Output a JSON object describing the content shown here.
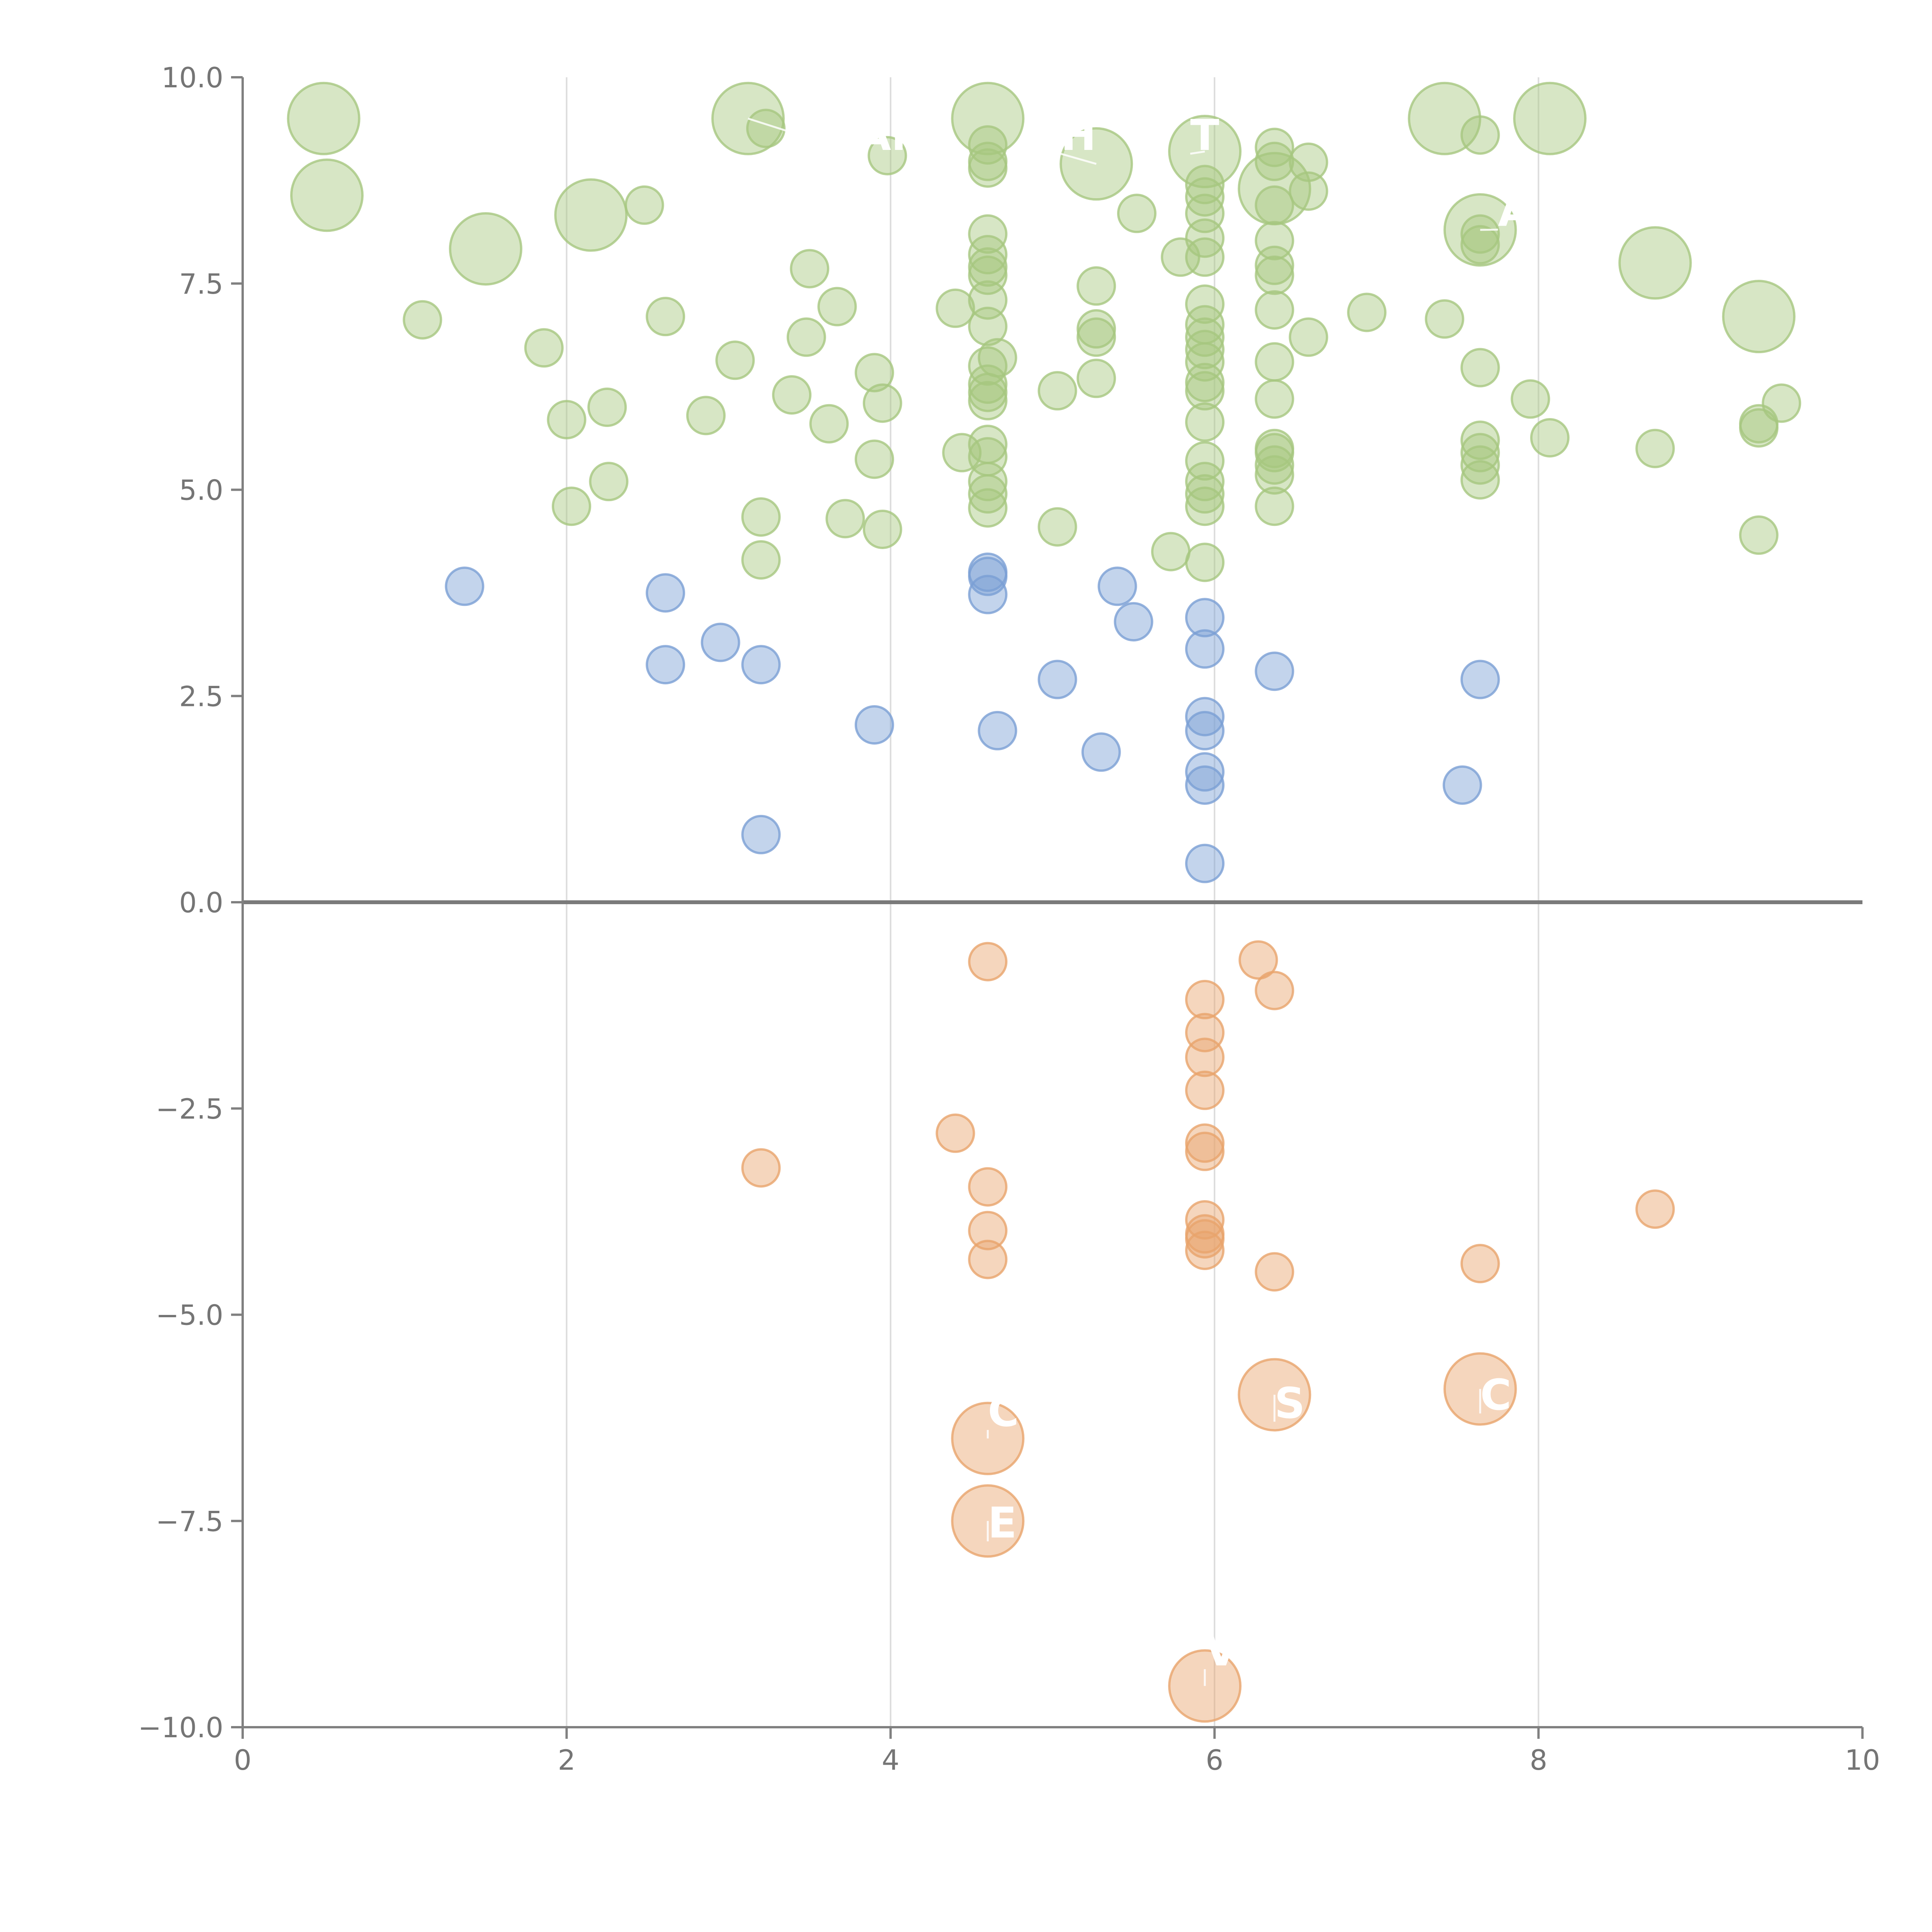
{
  "chart_data": {
    "type": "scatter",
    "title": "",
    "xlabel": "",
    "ylabel": "",
    "xlim": [
      0,
      10
    ],
    "ylim": [
      -10,
      10
    ],
    "x_ticks": [
      "0",
      "2",
      "4",
      "6",
      "8",
      "10"
    ],
    "x_tick_values": [
      0,
      2,
      4,
      6,
      8,
      10
    ],
    "y_ticks": [
      "10.0",
      "7.5",
      "5.0",
      "2.5",
      "0.0",
      "−2.5",
      "−5.0",
      "−7.5",
      "−10.0"
    ],
    "y_tick_values": [
      10,
      7.5,
      5,
      2.5,
      0,
      -2.5,
      -5,
      -7.5,
      -10
    ],
    "vertical_grid": [
      2,
      4,
      6,
      8
    ],
    "zero_line": true,
    "legend": "none",
    "colors": {
      "positive_high": "#a6c77f",
      "positive_low": "#7b9fd4",
      "negative": "#e8a46c"
    },
    "series": [
      {
        "color_key": "positive_high",
        "points": [
          [
            0.5,
            9.5,
            2
          ],
          [
            0.52,
            8.57,
            2
          ],
          [
            1.5,
            7.92,
            2
          ],
          [
            2.15,
            8.33,
            2
          ],
          [
            3.12,
            9.5,
            2
          ],
          [
            4.6,
            9.5,
            2
          ],
          [
            5.27,
            8.95,
            2
          ],
          [
            5.94,
            9.1,
            2
          ],
          [
            6.37,
            8.65,
            2
          ],
          [
            7.42,
            9.5,
            2
          ],
          [
            8.07,
            9.5,
            2
          ],
          [
            7.64,
            8.15,
            2
          ],
          [
            8.72,
            7.75,
            2
          ],
          [
            9.36,
            7.1,
            2
          ],
          [
            1.11,
            7.06,
            1
          ],
          [
            1.86,
            6.72,
            1
          ],
          [
            2.0,
            5.85,
            1
          ],
          [
            2.03,
            4.8,
            1
          ],
          [
            2.25,
            6.0,
            1
          ],
          [
            2.26,
            5.1,
            1
          ],
          [
            2.48,
            8.45,
            1
          ],
          [
            2.61,
            7.1,
            1
          ],
          [
            2.86,
            5.9,
            1
          ],
          [
            3.04,
            6.57,
            1
          ],
          [
            3.2,
            4.67,
            1
          ],
          [
            3.2,
            4.15,
            1
          ],
          [
            3.23,
            9.38,
            1
          ],
          [
            3.39,
            6.15,
            1
          ],
          [
            3.48,
            6.85,
            1
          ],
          [
            3.5,
            7.68,
            1
          ],
          [
            3.62,
            5.8,
            1
          ],
          [
            3.67,
            7.22,
            1
          ],
          [
            3.72,
            4.65,
            1
          ],
          [
            3.9,
            6.42,
            1
          ],
          [
            3.9,
            5.37,
            1
          ],
          [
            3.95,
            6.05,
            1
          ],
          [
            3.95,
            4.52,
            1
          ],
          [
            3.98,
            9.05,
            1
          ],
          [
            4.4,
            7.2,
            1
          ],
          [
            4.44,
            5.45,
            1
          ],
          [
            4.6,
            9.18,
            1
          ],
          [
            4.6,
            8.98,
            1
          ],
          [
            4.6,
            8.9,
            1
          ],
          [
            4.6,
            8.1,
            1
          ],
          [
            4.6,
            7.85,
            1
          ],
          [
            4.6,
            7.7,
            1
          ],
          [
            4.6,
            7.6,
            1
          ],
          [
            4.6,
            7.3,
            1
          ],
          [
            4.6,
            6.98,
            1
          ],
          [
            4.6,
            6.5,
            1
          ],
          [
            4.6,
            6.28,
            1
          ],
          [
            4.6,
            6.18,
            1
          ],
          [
            4.6,
            6.08,
            1
          ],
          [
            4.6,
            5.55,
            1
          ],
          [
            4.6,
            5.4,
            1
          ],
          [
            4.6,
            5.1,
            1
          ],
          [
            4.6,
            4.95,
            1
          ],
          [
            4.6,
            4.78,
            1
          ],
          [
            4.66,
            6.6,
            1
          ],
          [
            5.03,
            6.2,
            1
          ],
          [
            5.03,
            4.55,
            1
          ],
          [
            5.27,
            7.47,
            1
          ],
          [
            5.27,
            6.95,
            1
          ],
          [
            5.27,
            6.85,
            1
          ],
          [
            5.27,
            6.35,
            1
          ],
          [
            5.52,
            8.35,
            1
          ],
          [
            5.73,
            4.25,
            1
          ],
          [
            5.79,
            7.82,
            1
          ],
          [
            5.94,
            8.7,
            1
          ],
          [
            5.94,
            8.55,
            1
          ],
          [
            5.94,
            8.35,
            1
          ],
          [
            5.94,
            8.05,
            1
          ],
          [
            5.94,
            7.82,
            1
          ],
          [
            5.94,
            7.25,
            1
          ],
          [
            5.94,
            7.0,
            1
          ],
          [
            5.94,
            6.85,
            1
          ],
          [
            5.94,
            6.7,
            1
          ],
          [
            5.94,
            6.55,
            1
          ],
          [
            5.94,
            6.3,
            1
          ],
          [
            5.94,
            6.2,
            1
          ],
          [
            5.94,
            5.82,
            1
          ],
          [
            5.94,
            5.35,
            1
          ],
          [
            5.94,
            5.1,
            1
          ],
          [
            5.94,
            4.95,
            1
          ],
          [
            5.94,
            4.8,
            1
          ],
          [
            5.94,
            4.12,
            1
          ],
          [
            6.37,
            9.15,
            1
          ],
          [
            6.37,
            8.98,
            1
          ],
          [
            6.37,
            8.45,
            1
          ],
          [
            6.37,
            8.02,
            1
          ],
          [
            6.37,
            7.72,
            1
          ],
          [
            6.37,
            7.6,
            1
          ],
          [
            6.37,
            7.18,
            1
          ],
          [
            6.37,
            6.55,
            1
          ],
          [
            6.37,
            6.1,
            1
          ],
          [
            6.37,
            5.5,
            1
          ],
          [
            6.37,
            5.45,
            1
          ],
          [
            6.37,
            5.3,
            1
          ],
          [
            6.37,
            5.18,
            1
          ],
          [
            6.37,
            4.8,
            1
          ],
          [
            6.58,
            8.97,
            1
          ],
          [
            6.58,
            8.62,
            1
          ],
          [
            6.58,
            6.85,
            1
          ],
          [
            6.94,
            7.15,
            1
          ],
          [
            7.42,
            7.07,
            1
          ],
          [
            7.64,
            9.3,
            1
          ],
          [
            7.64,
            8.1,
            1
          ],
          [
            7.64,
            7.97,
            1
          ],
          [
            7.64,
            6.48,
            1
          ],
          [
            7.64,
            5.6,
            1
          ],
          [
            7.64,
            5.45,
            1
          ],
          [
            7.64,
            5.3,
            1
          ],
          [
            7.64,
            5.12,
            1
          ],
          [
            7.95,
            6.1,
            1
          ],
          [
            8.07,
            5.63,
            1
          ],
          [
            8.72,
            5.5,
            1
          ],
          [
            9.36,
            5.8,
            1
          ],
          [
            9.36,
            5.75,
            1
          ],
          [
            9.36,
            4.45,
            1
          ],
          [
            9.5,
            6.05,
            1
          ]
        ]
      },
      {
        "color_key": "positive_low",
        "points": [
          [
            1.37,
            3.83,
            1
          ],
          [
            2.61,
            3.75,
            1
          ],
          [
            2.61,
            2.88,
            1
          ],
          [
            2.95,
            3.15,
            1
          ],
          [
            3.2,
            2.88,
            1
          ],
          [
            3.2,
            0.82,
            1
          ],
          [
            3.9,
            2.15,
            1
          ],
          [
            4.6,
            4.0,
            1
          ],
          [
            4.6,
            3.95,
            1
          ],
          [
            4.6,
            3.73,
            1
          ],
          [
            4.66,
            2.08,
            1
          ],
          [
            5.03,
            2.7,
            1
          ],
          [
            5.3,
            1.82,
            1
          ],
          [
            5.4,
            3.83,
            1
          ],
          [
            5.5,
            3.4,
            1
          ],
          [
            5.94,
            3.45,
            1
          ],
          [
            5.94,
            3.07,
            1
          ],
          [
            5.94,
            2.25,
            1
          ],
          [
            5.94,
            2.08,
            1
          ],
          [
            5.94,
            1.58,
            1
          ],
          [
            5.94,
            1.42,
            1
          ],
          [
            5.94,
            0.47,
            1
          ],
          [
            6.37,
            2.8,
            1
          ],
          [
            7.53,
            1.42,
            1
          ],
          [
            7.64,
            2.7,
            1
          ]
        ]
      },
      {
        "color_key": "negative",
        "points": [
          [
            3.2,
            -3.22,
            1
          ],
          [
            4.4,
            -2.8,
            1
          ],
          [
            4.6,
            -0.72,
            1
          ],
          [
            4.6,
            -3.45,
            1
          ],
          [
            4.6,
            -3.98,
            1
          ],
          [
            4.6,
            -4.33,
            1
          ],
          [
            5.94,
            -1.18,
            1
          ],
          [
            5.94,
            -1.58,
            1
          ],
          [
            5.94,
            -1.88,
            1
          ],
          [
            5.94,
            -2.28,
            1
          ],
          [
            5.94,
            -2.92,
            1
          ],
          [
            5.94,
            -3.02,
            1
          ],
          [
            5.94,
            -3.85,
            1
          ],
          [
            5.94,
            -4.02,
            1
          ],
          [
            5.94,
            -4.08,
            1
          ],
          [
            5.94,
            -4.22,
            1
          ],
          [
            6.27,
            -0.7,
            1
          ],
          [
            6.37,
            -1.07,
            1
          ],
          [
            6.37,
            -4.48,
            1
          ],
          [
            7.64,
            -4.38,
            1
          ],
          [
            8.72,
            -3.72,
            1
          ],
          [
            4.6,
            -6.5,
            2
          ],
          [
            4.6,
            -7.5,
            2
          ],
          [
            6.37,
            -5.97,
            2
          ],
          [
            7.64,
            -5.9,
            2
          ],
          [
            5.94,
            -9.5,
            2
          ]
        ]
      }
    ],
    "annotations": [
      {
        "text": "AN",
        "x": 3.8,
        "y": 9.12,
        "from": [
          3.12,
          9.5
        ]
      },
      {
        "text": "H",
        "x": 5.05,
        "y": 9.12,
        "from": [
          5.27,
          8.95
        ]
      },
      {
        "text": "T",
        "x": 5.85,
        "y": 9.12,
        "from": [
          5.94,
          9.1
        ]
      },
      {
        "text": "A",
        "x": 7.75,
        "y": 8.2,
        "from": [
          7.64,
          8.15
        ]
      },
      {
        "text": "C",
        "x": 4.6,
        "y": -6.35,
        "from": [
          4.6,
          -6.5
        ]
      },
      {
        "text": "S",
        "x": 6.37,
        "y": -6.25,
        "from": [
          6.37,
          -5.97
        ]
      },
      {
        "text": "C",
        "x": 7.64,
        "y": -6.15,
        "from": [
          7.64,
          -5.9
        ]
      },
      {
        "text": "E",
        "x": 4.6,
        "y": -7.7,
        "from": [
          4.6,
          -7.5
        ]
      },
      {
        "text": "V",
        "x": 5.94,
        "y": -9.25,
        "from": [
          5.94,
          -9.5
        ]
      }
    ]
  }
}
